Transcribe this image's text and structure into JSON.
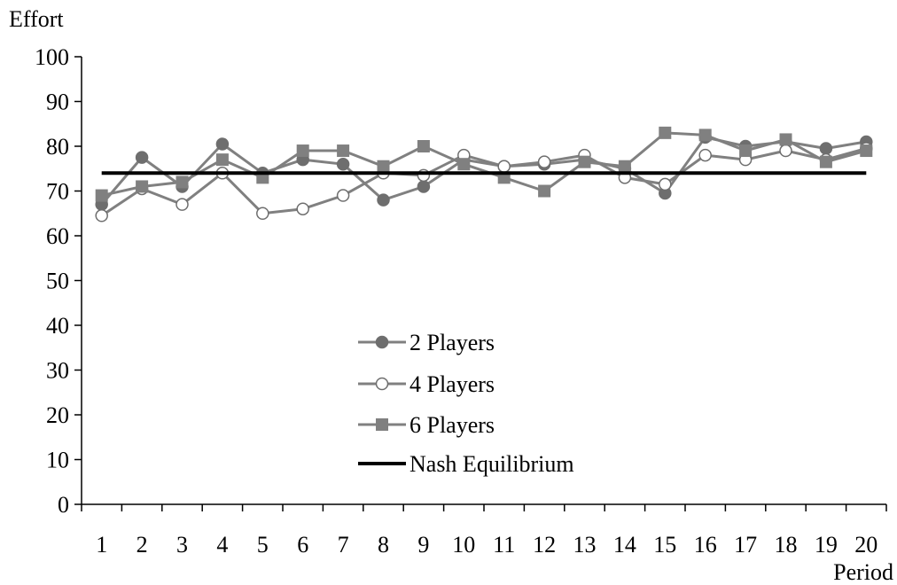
{
  "chart_data": {
    "type": "line",
    "ylabel": "Effort",
    "xlabel": "Period",
    "x": [
      1,
      2,
      3,
      4,
      5,
      6,
      7,
      8,
      9,
      10,
      11,
      12,
      13,
      14,
      15,
      16,
      17,
      18,
      19,
      20
    ],
    "x_tick_labels": [
      "1",
      "2",
      "3",
      "4",
      "5",
      "6",
      "7",
      "8",
      "9",
      "10",
      "11",
      "12",
      "13",
      "14",
      "15",
      "16",
      "17",
      "18",
      "19",
      "20"
    ],
    "ylim": [
      0,
      100
    ],
    "y_ticks": [
      0,
      10,
      20,
      30,
      40,
      50,
      60,
      70,
      80,
      90,
      100
    ],
    "y_tick_labels": [
      "0",
      "10",
      "20",
      "30",
      "40",
      "50",
      "60",
      "70",
      "80",
      "90",
      "100"
    ],
    "grid": false,
    "legend_position": "center-left",
    "series": [
      {
        "name": "2 Players",
        "marker": "filled-circle",
        "line_color": "#808080",
        "marker_color": "#6e6e6e",
        "values": [
          67,
          77.5,
          71,
          80.5,
          74,
          77,
          76,
          68,
          71,
          77,
          75.5,
          76,
          77,
          75,
          69.5,
          82,
          80,
          81,
          79.5,
          81
        ]
      },
      {
        "name": "4 Players",
        "marker": "hollow-circle",
        "line_color": "#808080",
        "marker_color": "#6e6e6e",
        "values": [
          64.5,
          70.5,
          67,
          74,
          65,
          66,
          69,
          74,
          73.5,
          78,
          75.5,
          76.5,
          78,
          73,
          71.5,
          78,
          77,
          79,
          77,
          79.5
        ]
      },
      {
        "name": "6 Players",
        "marker": "square",
        "line_color": "#808080",
        "marker_color": "#808080",
        "values": [
          69,
          71,
          72,
          77,
          73,
          79,
          79,
          75.5,
          80,
          76,
          73,
          70,
          76.5,
          75.5,
          83,
          82.5,
          79,
          81.5,
          76.5,
          79
        ]
      },
      {
        "name": "Nash Equilibrium",
        "marker": "none",
        "line_color": "#000000",
        "values": [
          74,
          74,
          74,
          74,
          74,
          74,
          74,
          74,
          74,
          74,
          74,
          74,
          74,
          74,
          74,
          74,
          74,
          74,
          74,
          74
        ]
      }
    ]
  }
}
